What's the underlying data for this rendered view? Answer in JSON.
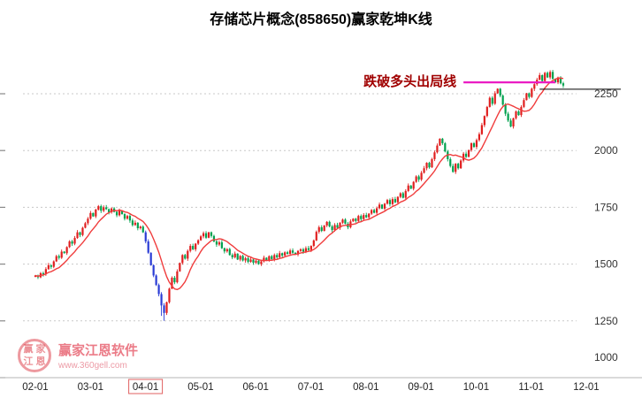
{
  "title": "存储芯片概念(858650)赢家乾坤K线",
  "watermark": {
    "name": "赢家江恩软件",
    "url": "www.360gell.com",
    "logo_chars": [
      "赢",
      "家",
      "江",
      "恩"
    ]
  },
  "chart_data": {
    "type": "candlestick",
    "title": "存储芯片概念(858650)赢家乾坤K线",
    "x_labels": [
      "02-01",
      "03-01",
      "04-01",
      "05-01",
      "06-01",
      "07-01",
      "08-01",
      "09-01",
      "10-01",
      "11-01",
      "12-01"
    ],
    "highlight_label_index": 2,
    "y_ticks": [
      2250,
      2000,
      1750,
      1500,
      1250,
      1000
    ],
    "ylim": [
      1000,
      2475
    ],
    "grid": true,
    "y_axis_position": "right",
    "ma_period": 10,
    "first_open": 1444,
    "closes": [
      1450,
      1442,
      1460,
      1455,
      1478,
      1495,
      1488,
      1512,
      1535,
      1528,
      1555,
      1548,
      1575,
      1600,
      1590,
      1615,
      1640,
      1628,
      1660,
      1680,
      1700,
      1725,
      1710,
      1740,
      1755,
      1735,
      1750,
      1742,
      1728,
      1745,
      1730,
      1715,
      1735,
      1720,
      1700,
      1712,
      1692,
      1672,
      1682,
      1658,
      1665,
      1640,
      1600,
      1550,
      1495,
      1450,
      1408,
      1368,
      1318,
      1285,
      1332,
      1392,
      1440,
      1420,
      1468,
      1505,
      1540,
      1524,
      1558,
      1580,
      1565,
      1590,
      1605,
      1622,
      1636,
      1616,
      1640,
      1624,
      1600,
      1586,
      1596,
      1570,
      1556,
      1566,
      1540,
      1530,
      1546,
      1520,
      1536,
      1516,
      1526,
      1510,
      1520,
      1506,
      1515,
      1500,
      1512,
      1528,
      1518,
      1535,
      1522,
      1540,
      1530,
      1548,
      1538,
      1552,
      1545,
      1560,
      1550,
      1542,
      1558,
      1565,
      1555,
      1570,
      1562,
      1580,
      1604,
      1642,
      1662,
      1646,
      1670,
      1686,
      1666,
      1650,
      1672,
      1660,
      1682,
      1696,
      1678,
      1662,
      1688,
      1700,
      1690,
      1712,
      1698,
      1716,
      1706,
      1722,
      1738,
      1726,
      1746,
      1762,
      1744,
      1766,
      1782,
      1764,
      1786,
      1772,
      1796,
      1812,
      1792,
      1822,
      1846,
      1832,
      1862,
      1886,
      1872,
      1902,
      1922,
      1946,
      1926,
      1962,
      1992,
      2022,
      2052,
      2032,
      1996,
      1962,
      1932,
      1906,
      1942,
      1922,
      1956,
      1986,
      1972,
      2002,
      2032,
      2016,
      2046,
      2072,
      2112,
      2152,
      2192,
      2232,
      2206,
      2252,
      2272,
      2242,
      2202,
      2162,
      2132,
      2106,
      2142,
      2172,
      2156,
      2192,
      2222,
      2252,
      2236,
      2272,
      2292,
      2312,
      2332,
      2306,
      2342,
      2322,
      2346,
      2316,
      2300,
      2322,
      2296,
      2286
    ],
    "special_lows": {
      "48": 1272,
      "49": 1250
    },
    "blue_down_ranges": [
      [
        42,
        51
      ]
    ],
    "colors": {
      "up": "#e01f1f",
      "down": "#00a14e",
      "down_blue": "#2a3cd5",
      "ma": "#f03c3c",
      "grid": "#c8c8c8",
      "axis_text": "#333333"
    },
    "annotations": {
      "bull_exit": {
        "label": "跌破多头出局线",
        "value": 2300,
        "start_index": 163,
        "end_index": 198,
        "line_color": "#ea1cc3",
        "text_color": "#a00000"
      },
      "level_line": {
        "value": 2270,
        "start_index": 192,
        "end_x": 702,
        "color": "#000000"
      }
    }
  }
}
